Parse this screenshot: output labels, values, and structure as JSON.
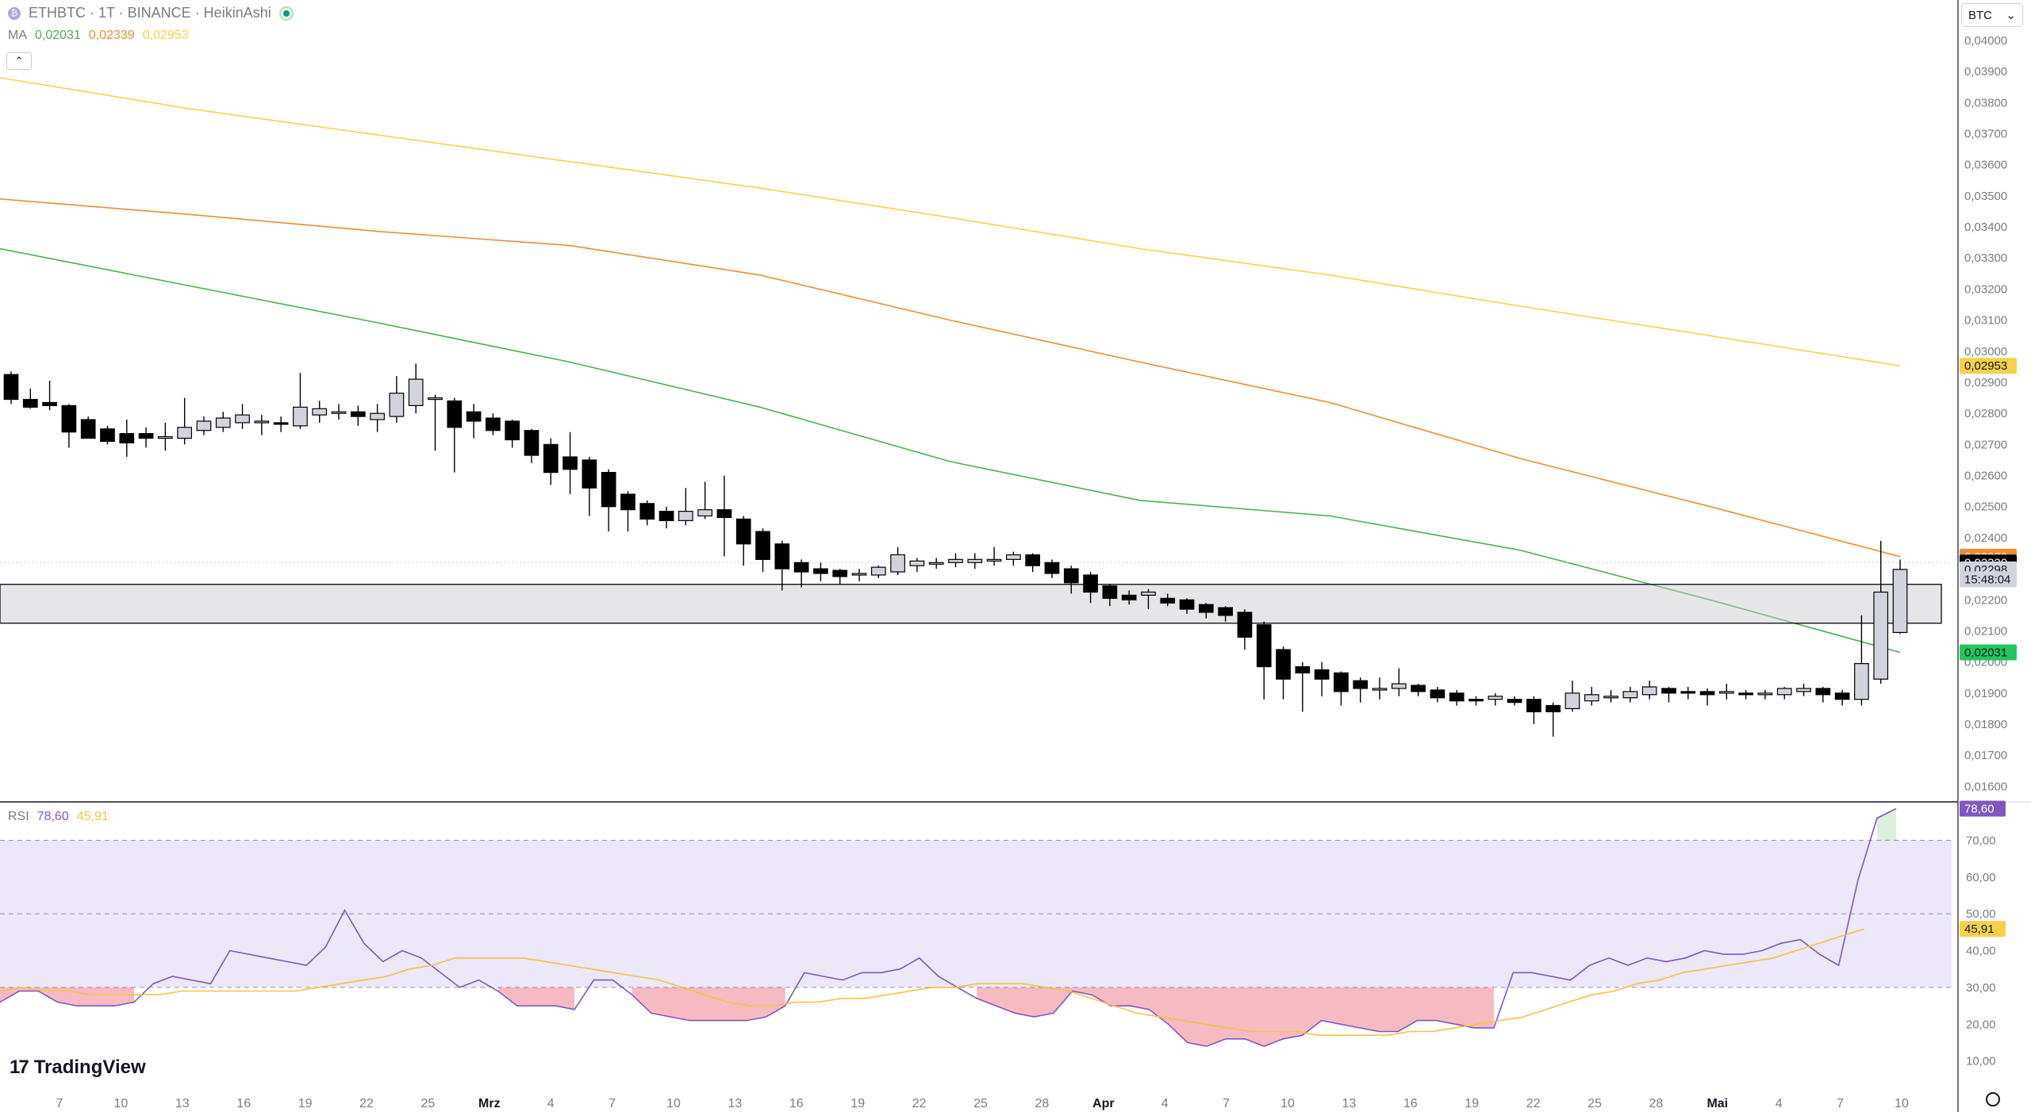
{
  "header": {
    "symbol_icon": "logo-badge-icon",
    "symbol_icon_glyph": "₿",
    "title": "ETHBTC · 1T · BINANCE · HeikinAshi",
    "status_icon": "market-open-dot-icon",
    "ma_label": "MA",
    "ma_values": [
      "0,02031",
      "0,02339",
      "0,02953"
    ],
    "collapse_glyph": "⌃"
  },
  "currency_selector": {
    "value": "BTC",
    "chevron": "⌄"
  },
  "rsi_legend": {
    "label": "RSI",
    "values": [
      "78,60",
      "45,91"
    ]
  },
  "branding": {
    "logo": "TradingView",
    "mark": "17"
  },
  "colors": {
    "ma_short": "#4caf50",
    "ma_mid": "#f28b30",
    "ma_long": "#f5d14a",
    "rsi": "#7e57c2",
    "rsi_ma": "#f5c242",
    "bull_fill": "#d1d4dc",
    "bear_fill": "#000000",
    "band_fill": "#ece7f9",
    "oversold_fill": "#e53950"
  },
  "chart_data": [
    {
      "type": "candlestick",
      "style": "HeikinAshi",
      "symbol": "ETHBTC",
      "x_tick_labels": [
        "7",
        "10",
        "13",
        "16",
        "19",
        "22",
        "25",
        "Mrz",
        "4",
        "7",
        "10",
        "13",
        "16",
        "19",
        "22",
        "25",
        "28",
        "Apr",
        "4",
        "7",
        "10",
        "13",
        "16",
        "19",
        "22",
        "25",
        "28",
        "Mai",
        "4",
        "7",
        "10"
      ],
      "x_tick_bold": [
        "Mrz",
        "Apr",
        "Mai"
      ],
      "ylim": [
        0.0155,
        0.0413
      ],
      "y_ticks": [
        0.016,
        0.017,
        0.018,
        0.019,
        0.02,
        0.021,
        0.022,
        0.023,
        0.024,
        0.025,
        0.026,
        0.027,
        0.028,
        0.029,
        0.03,
        0.031,
        0.032,
        0.033,
        0.034,
        0.035,
        0.036,
        0.037,
        0.038,
        0.039,
        0.04
      ],
      "y_tick_labels": [
        "0,01600",
        "0,01700",
        "0,01800",
        "0,01900",
        "0,02000",
        "0,02100",
        "0,02200",
        "0,02300",
        "0,02400",
        "0,02500",
        "0,02600",
        "0,02700",
        "0,02800",
        "0,02900",
        "0,03000",
        "0,03100",
        "0,03200",
        "0,03300",
        "0,03400",
        "0,03500",
        "0,03600",
        "0,03700",
        "0,03800",
        "0,03900",
        "0,04000"
      ],
      "candles": [
        {
          "o": 0.02925,
          "h": 0.02935,
          "l": 0.0283,
          "c": 0.02845
        },
        {
          "o": 0.02845,
          "h": 0.0288,
          "l": 0.02815,
          "c": 0.0282
        },
        {
          "o": 0.02835,
          "h": 0.02905,
          "l": 0.0281,
          "c": 0.02825
        },
        {
          "o": 0.02825,
          "h": 0.0283,
          "l": 0.0269,
          "c": 0.0274
        },
        {
          "o": 0.0278,
          "h": 0.0279,
          "l": 0.0273,
          "c": 0.0272
        },
        {
          "o": 0.0275,
          "h": 0.0276,
          "l": 0.027,
          "c": 0.0271
        },
        {
          "o": 0.02735,
          "h": 0.0278,
          "l": 0.0266,
          "c": 0.02705
        },
        {
          "o": 0.02735,
          "h": 0.02755,
          "l": 0.0269,
          "c": 0.0272
        },
        {
          "o": 0.0272,
          "h": 0.0277,
          "l": 0.0268,
          "c": 0.02725
        },
        {
          "o": 0.0272,
          "h": 0.0285,
          "l": 0.027,
          "c": 0.02755
        },
        {
          "o": 0.02745,
          "h": 0.0279,
          "l": 0.0273,
          "c": 0.02775
        },
        {
          "o": 0.02755,
          "h": 0.02805,
          "l": 0.0274,
          "c": 0.02785
        },
        {
          "o": 0.0277,
          "h": 0.0283,
          "l": 0.0275,
          "c": 0.02795
        },
        {
          "o": 0.02775,
          "h": 0.02795,
          "l": 0.0273,
          "c": 0.02775
        },
        {
          "o": 0.0277,
          "h": 0.0279,
          "l": 0.0274,
          "c": 0.02765
        },
        {
          "o": 0.0276,
          "h": 0.0293,
          "l": 0.0275,
          "c": 0.0282
        },
        {
          "o": 0.02795,
          "h": 0.0284,
          "l": 0.0277,
          "c": 0.02815
        },
        {
          "o": 0.02805,
          "h": 0.0283,
          "l": 0.0278,
          "c": 0.02805
        },
        {
          "o": 0.02805,
          "h": 0.02825,
          "l": 0.0276,
          "c": 0.0279
        },
        {
          "o": 0.0278,
          "h": 0.0283,
          "l": 0.0274,
          "c": 0.028
        },
        {
          "o": 0.0279,
          "h": 0.0292,
          "l": 0.0277,
          "c": 0.02865
        },
        {
          "o": 0.02825,
          "h": 0.0296,
          "l": 0.028,
          "c": 0.0291
        },
        {
          "o": 0.02845,
          "h": 0.0286,
          "l": 0.0268,
          "c": 0.0285
        },
        {
          "o": 0.0284,
          "h": 0.0285,
          "l": 0.0261,
          "c": 0.02755
        },
        {
          "o": 0.02805,
          "h": 0.0283,
          "l": 0.0272,
          "c": 0.02775
        },
        {
          "o": 0.02785,
          "h": 0.028,
          "l": 0.0273,
          "c": 0.02745
        },
        {
          "o": 0.02775,
          "h": 0.0278,
          "l": 0.0269,
          "c": 0.02715
        },
        {
          "o": 0.02745,
          "h": 0.0275,
          "l": 0.0264,
          "c": 0.02665
        },
        {
          "o": 0.027,
          "h": 0.0272,
          "l": 0.0257,
          "c": 0.0261
        },
        {
          "o": 0.0266,
          "h": 0.0274,
          "l": 0.0254,
          "c": 0.0262
        },
        {
          "o": 0.0265,
          "h": 0.0266,
          "l": 0.0247,
          "c": 0.0256
        },
        {
          "o": 0.0261,
          "h": 0.0262,
          "l": 0.0242,
          "c": 0.025
        },
        {
          "o": 0.0254,
          "h": 0.0255,
          "l": 0.0242,
          "c": 0.0249
        },
        {
          "o": 0.0251,
          "h": 0.0252,
          "l": 0.0244,
          "c": 0.0246
        },
        {
          "o": 0.02485,
          "h": 0.025,
          "l": 0.0243,
          "c": 0.02455
        },
        {
          "o": 0.02455,
          "h": 0.0256,
          "l": 0.0244,
          "c": 0.02485
        },
        {
          "o": 0.0247,
          "h": 0.0258,
          "l": 0.0246,
          "c": 0.0249
        },
        {
          "o": 0.0249,
          "h": 0.026,
          "l": 0.0234,
          "c": 0.02465
        },
        {
          "o": 0.0246,
          "h": 0.0247,
          "l": 0.0231,
          "c": 0.0238
        },
        {
          "o": 0.0242,
          "h": 0.0243,
          "l": 0.0229,
          "c": 0.0233
        },
        {
          "o": 0.0238,
          "h": 0.0239,
          "l": 0.0223,
          "c": 0.023
        },
        {
          "o": 0.0232,
          "h": 0.0233,
          "l": 0.0224,
          "c": 0.0229
        },
        {
          "o": 0.023,
          "h": 0.0232,
          "l": 0.0226,
          "c": 0.02285
        },
        {
          "o": 0.02295,
          "h": 0.023,
          "l": 0.0225,
          "c": 0.02275
        },
        {
          "o": 0.0228,
          "h": 0.023,
          "l": 0.0226,
          "c": 0.02285
        },
        {
          "o": 0.0228,
          "h": 0.0231,
          "l": 0.0227,
          "c": 0.02305
        },
        {
          "o": 0.0229,
          "h": 0.0237,
          "l": 0.0228,
          "c": 0.02345
        },
        {
          "o": 0.0231,
          "h": 0.02335,
          "l": 0.0229,
          "c": 0.02325
        },
        {
          "o": 0.0232,
          "h": 0.02335,
          "l": 0.023,
          "c": 0.0232
        },
        {
          "o": 0.0232,
          "h": 0.0235,
          "l": 0.02305,
          "c": 0.0233
        },
        {
          "o": 0.0232,
          "h": 0.0235,
          "l": 0.023,
          "c": 0.0233
        },
        {
          "o": 0.02325,
          "h": 0.0237,
          "l": 0.0231,
          "c": 0.0233
        },
        {
          "o": 0.0233,
          "h": 0.02355,
          "l": 0.0231,
          "c": 0.02345
        },
        {
          "o": 0.02345,
          "h": 0.0235,
          "l": 0.0229,
          "c": 0.0231
        },
        {
          "o": 0.0232,
          "h": 0.0233,
          "l": 0.0227,
          "c": 0.02285
        },
        {
          "o": 0.023,
          "h": 0.0231,
          "l": 0.0222,
          "c": 0.02255
        },
        {
          "o": 0.0228,
          "h": 0.0229,
          "l": 0.0219,
          "c": 0.02225
        },
        {
          "o": 0.02245,
          "h": 0.0225,
          "l": 0.0218,
          "c": 0.02205
        },
        {
          "o": 0.02215,
          "h": 0.0223,
          "l": 0.02185,
          "c": 0.022
        },
        {
          "o": 0.02215,
          "h": 0.02235,
          "l": 0.0217,
          "c": 0.02225
        },
        {
          "o": 0.02205,
          "h": 0.0222,
          "l": 0.0218,
          "c": 0.0219
        },
        {
          "o": 0.022,
          "h": 0.02205,
          "l": 0.02155,
          "c": 0.0217
        },
        {
          "o": 0.02185,
          "h": 0.0219,
          "l": 0.0214,
          "c": 0.0216
        },
        {
          "o": 0.02175,
          "h": 0.0218,
          "l": 0.0213,
          "c": 0.0215
        },
        {
          "o": 0.0216,
          "h": 0.0217,
          "l": 0.0204,
          "c": 0.0208
        },
        {
          "o": 0.0212,
          "h": 0.0213,
          "l": 0.0188,
          "c": 0.01985
        },
        {
          "o": 0.0204,
          "h": 0.0205,
          "l": 0.0188,
          "c": 0.01945
        },
        {
          "o": 0.01985,
          "h": 0.02,
          "l": 0.0184,
          "c": 0.01965
        },
        {
          "o": 0.01975,
          "h": 0.02,
          "l": 0.0189,
          "c": 0.01945
        },
        {
          "o": 0.01965,
          "h": 0.0197,
          "l": 0.0186,
          "c": 0.01905
        },
        {
          "o": 0.0194,
          "h": 0.0195,
          "l": 0.0187,
          "c": 0.01915
        },
        {
          "o": 0.01915,
          "h": 0.0195,
          "l": 0.0188,
          "c": 0.01915
        },
        {
          "o": 0.01915,
          "h": 0.0198,
          "l": 0.0189,
          "c": 0.0193
        },
        {
          "o": 0.01925,
          "h": 0.0193,
          "l": 0.0189,
          "c": 0.01905
        },
        {
          "o": 0.0191,
          "h": 0.0192,
          "l": 0.0187,
          "c": 0.01885
        },
        {
          "o": 0.019,
          "h": 0.0191,
          "l": 0.0186,
          "c": 0.01875
        },
        {
          "o": 0.0188,
          "h": 0.0189,
          "l": 0.0186,
          "c": 0.01875
        },
        {
          "o": 0.0188,
          "h": 0.019,
          "l": 0.0186,
          "c": 0.0189
        },
        {
          "o": 0.0188,
          "h": 0.0189,
          "l": 0.0186,
          "c": 0.0187
        },
        {
          "o": 0.0188,
          "h": 0.0189,
          "l": 0.018,
          "c": 0.0184
        },
        {
          "o": 0.0186,
          "h": 0.0187,
          "l": 0.0176,
          "c": 0.0184
        },
        {
          "o": 0.0185,
          "h": 0.0194,
          "l": 0.0184,
          "c": 0.019
        },
        {
          "o": 0.01875,
          "h": 0.0192,
          "l": 0.0186,
          "c": 0.01895
        },
        {
          "o": 0.01885,
          "h": 0.0191,
          "l": 0.0187,
          "c": 0.0189
        },
        {
          "o": 0.01885,
          "h": 0.0192,
          "l": 0.0187,
          "c": 0.01905
        },
        {
          "o": 0.01895,
          "h": 0.0194,
          "l": 0.0188,
          "c": 0.0192
        },
        {
          "o": 0.01915,
          "h": 0.0192,
          "l": 0.0187,
          "c": 0.019
        },
        {
          "o": 0.01905,
          "h": 0.0192,
          "l": 0.0188,
          "c": 0.019
        },
        {
          "o": 0.01905,
          "h": 0.01915,
          "l": 0.0186,
          "c": 0.01895
        },
        {
          "o": 0.019,
          "h": 0.0193,
          "l": 0.0188,
          "c": 0.01905
        },
        {
          "o": 0.019,
          "h": 0.0191,
          "l": 0.0188,
          "c": 0.01895
        },
        {
          "o": 0.01895,
          "h": 0.0191,
          "l": 0.0188,
          "c": 0.019
        },
        {
          "o": 0.01895,
          "h": 0.0192,
          "l": 0.0188,
          "c": 0.01915
        },
        {
          "o": 0.01905,
          "h": 0.0193,
          "l": 0.0189,
          "c": 0.01915
        },
        {
          "o": 0.01915,
          "h": 0.0192,
          "l": 0.0187,
          "c": 0.01895
        },
        {
          "o": 0.019,
          "h": 0.0191,
          "l": 0.0186,
          "c": 0.0188
        },
        {
          "o": 0.0188,
          "h": 0.0215,
          "l": 0.0186,
          "c": 0.01995
        },
        {
          "o": 0.01945,
          "h": 0.0239,
          "l": 0.0193,
          "c": 0.02225
        },
        {
          "o": 0.02095,
          "h": 0.0233,
          "l": 0.0209,
          "c": 0.02298
        }
      ],
      "moving_averages": [
        {
          "name": "MA",
          "label": "0,02031",
          "color": "#4caf50",
          "values": [
            0.0333,
            0.0321,
            0.0309,
            0.02965,
            0.0282,
            0.02645,
            0.0252,
            0.0247,
            0.0236,
            0.022,
            0.02031
          ]
        },
        {
          "name": "MA",
          "label": "0,02339",
          "color": "#f28b30",
          "values": [
            0.0349,
            0.0344,
            0.03385,
            0.0334,
            0.03245,
            0.031,
            0.02965,
            0.02835,
            0.02655,
            0.025,
            0.02339
          ]
        },
        {
          "name": "MA",
          "label": "0,02953",
          "color": "#f5d14a",
          "values": [
            0.0388,
            0.0378,
            0.03695,
            0.0361,
            0.03525,
            0.0343,
            0.0333,
            0.03245,
            0.03145,
            0.0305,
            0.02953
          ]
        }
      ],
      "zone": {
        "from": 0.02125,
        "to": 0.0225
      },
      "price_labels": [
        {
          "text": "0,02953",
          "value": 0.02953,
          "bg": "#f5d14a",
          "fg": "#131722"
        },
        {
          "text": "0,02339",
          "value": 0.02339,
          "bg": "#f28b30",
          "fg": "#ffffff"
        },
        {
          "text": "0,02320",
          "value": 0.0232,
          "bg": "#000000",
          "fg": "#ffffff"
        },
        {
          "text": "0,02298",
          "value": 0.02298,
          "bg": "#d1d4dc",
          "fg": "#131722"
        },
        {
          "text": "15:48:04",
          "value": 0.02266,
          "bg": "#d1d4dc",
          "fg": "#131722"
        },
        {
          "text": "0,02031",
          "value": 0.02031,
          "bg": "#22c55e",
          "fg": "#131722"
        }
      ]
    },
    {
      "type": "line",
      "name": "RSI",
      "ylim": [
        0,
        80
      ],
      "y_ticks": [
        10,
        20,
        30,
        40,
        50,
        60,
        70
      ],
      "y_tick_labels": [
        "10,00",
        "20,00",
        "30,00",
        "40,00",
        "50,00",
        "60,00",
        "70,00"
      ],
      "bands": {
        "upper": 70,
        "middle": 50,
        "lower": 30
      },
      "series": [
        {
          "name": "RSI",
          "label": "78,60",
          "color": "#7e57c2",
          "values": [
            26,
            29,
            29,
            26,
            25,
            25,
            25,
            26,
            31,
            33,
            32,
            31,
            40,
            39,
            38,
            37,
            36,
            41,
            51,
            42,
            37,
            40,
            38,
            34,
            30,
            32,
            29,
            25,
            25,
            25,
            24,
            32,
            32,
            28,
            23,
            22,
            21,
            21,
            21,
            21,
            22,
            25,
            34,
            33,
            32,
            34,
            34,
            35,
            38,
            33,
            30,
            27,
            25,
            23,
            22,
            23,
            29,
            28,
            25,
            25,
            24,
            20,
            15,
            14,
            16,
            16,
            14,
            16,
            17,
            21,
            20,
            19,
            18,
            18,
            21,
            21,
            20,
            19,
            19,
            34,
            34,
            33,
            32,
            36,
            38,
            36,
            38,
            37,
            38,
            40,
            39,
            39,
            40,
            42,
            43,
            39,
            36,
            59,
            76,
            78.6
          ]
        },
        {
          "name": "RSI-MA",
          "label": "45,91",
          "color": "#f5c242",
          "values": [
            29,
            30,
            29,
            29,
            28,
            28,
            28,
            28,
            29,
            29,
            29,
            29,
            29,
            29,
            30,
            31,
            32,
            33,
            35,
            36,
            38,
            38,
            38,
            38,
            37,
            36,
            35,
            34,
            33,
            32,
            30,
            28,
            26,
            25,
            25,
            26,
            26,
            27,
            27,
            28,
            29,
            30,
            30,
            31,
            31,
            31,
            30,
            29,
            27,
            25,
            23,
            22,
            21,
            20,
            19,
            18,
            18,
            18,
            17,
            17,
            17,
            17,
            18,
            18,
            19,
            20,
            21,
            22,
            24,
            26,
            28,
            29,
            31,
            32,
            34,
            35,
            36,
            37,
            38,
            40,
            42,
            44,
            45.91
          ]
        }
      ]
    }
  ]
}
